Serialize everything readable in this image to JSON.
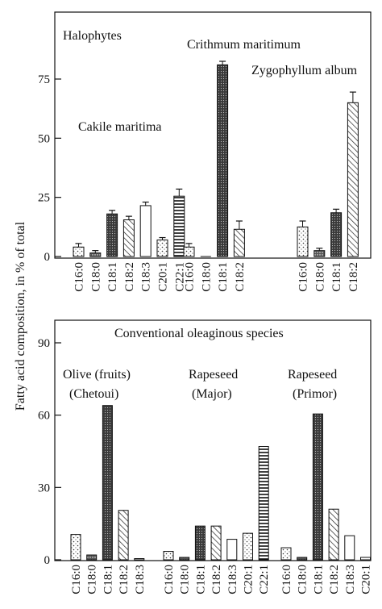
{
  "shared_ylabel": "Fatty acid composition, in % of total",
  "chart_data": [
    {
      "type": "bar",
      "title": "Halophytes",
      "ylim": [
        0,
        85
      ],
      "yticks": [
        0,
        25,
        50,
        75
      ],
      "grid": false,
      "groups": [
        {
          "name": "Cakile maritima",
          "bars": [
            {
              "category": "C16:0",
              "value": 4,
              "error": 1.5,
              "pattern": "dots"
            },
            {
              "category": "C18:0",
              "value": 1.5,
              "error": 1,
              "pattern": "dense-dots"
            },
            {
              "category": "C18:1",
              "value": 18,
              "error": 1.5,
              "pattern": "dark-stipple"
            },
            {
              "category": "C18:2",
              "value": 15.5,
              "error": 1.5,
              "pattern": "diagonal"
            },
            {
              "category": "C18:3",
              "value": 21.5,
              "error": 1.5,
              "pattern": "white"
            },
            {
              "category": "C20:1",
              "value": 7,
              "error": 1,
              "pattern": "dots"
            },
            {
              "category": "C22:1",
              "value": 25.5,
              "error": 3,
              "pattern": "horizontal"
            }
          ]
        },
        {
          "name": "Crithmum maritimum",
          "bars": [
            {
              "category": "C16:0",
              "value": 4,
              "error": 1.5,
              "pattern": "dots"
            },
            {
              "category": "C18:0",
              "value": 0,
              "error": 0,
              "pattern": "dense-dots"
            },
            {
              "category": "C18:1",
              "value": 81,
              "error": 1.5,
              "pattern": "dark-stipple"
            },
            {
              "category": "C18:2",
              "value": 11.5,
              "error": 3.5,
              "pattern": "diagonal"
            }
          ]
        },
        {
          "name": "Zygophyllum album",
          "bars": [
            {
              "category": "C16:0",
              "value": 12.5,
              "error": 2.5,
              "pattern": "dots"
            },
            {
              "category": "C18:0",
              "value": 2.5,
              "error": 1,
              "pattern": "dense-dots"
            },
            {
              "category": "C18:1",
              "value": 18.5,
              "error": 1.5,
              "pattern": "dark-stipple"
            },
            {
              "category": "C18:2",
              "value": 65,
              "error": 4.5,
              "pattern": "diagonal"
            }
          ]
        }
      ]
    },
    {
      "type": "bar",
      "title": "Conventional oleaginous species",
      "ylim": [
        0,
        100
      ],
      "yticks": [
        0,
        30,
        60,
        90
      ],
      "grid": false,
      "groups": [
        {
          "name": "Olive (fruits) (Chetoui)",
          "label_lines": [
            "Olive (fruits)",
            "(Chetoui)"
          ],
          "bars": [
            {
              "category": "C16:0",
              "value": 10.5,
              "pattern": "dots"
            },
            {
              "category": "C18:0",
              "value": 2,
              "pattern": "dense-dots"
            },
            {
              "category": "C18:1",
              "value": 64,
              "pattern": "dark-stipple"
            },
            {
              "category": "C18:2",
              "value": 20.5,
              "pattern": "diagonal"
            },
            {
              "category": "C18:3",
              "value": 0.5,
              "pattern": "white"
            }
          ]
        },
        {
          "name": "Rapeseed (Major)",
          "label_lines": [
            "Rapeseed",
            "(Major)"
          ],
          "bars": [
            {
              "category": "C16:0",
              "value": 3.5,
              "pattern": "dots"
            },
            {
              "category": "C18:0",
              "value": 1,
              "pattern": "dense-dots"
            },
            {
              "category": "C18:1",
              "value": 14,
              "pattern": "dark-stipple"
            },
            {
              "category": "C18:2",
              "value": 14,
              "pattern": "diagonal"
            },
            {
              "category": "C18:3",
              "value": 8.5,
              "pattern": "white"
            },
            {
              "category": "C20:1",
              "value": 11,
              "pattern": "dots"
            },
            {
              "category": "C22:1",
              "value": 47,
              "pattern": "horizontal"
            }
          ]
        },
        {
          "name": "Rapeseed (Primor)",
          "label_lines": [
            "Rapeseed",
            "(Primor)"
          ],
          "bars": [
            {
              "category": "C16:0",
              "value": 5,
              "pattern": "dots"
            },
            {
              "category": "C18:0",
              "value": 1,
              "pattern": "dense-dots"
            },
            {
              "category": "C18:1",
              "value": 60.5,
              "pattern": "dark-stipple"
            },
            {
              "category": "C18:2",
              "value": 21,
              "pattern": "diagonal"
            },
            {
              "category": "C18:3",
              "value": 10,
              "pattern": "white"
            },
            {
              "category": "C20:1",
              "value": 1,
              "pattern": "white"
            }
          ]
        }
      ]
    }
  ]
}
